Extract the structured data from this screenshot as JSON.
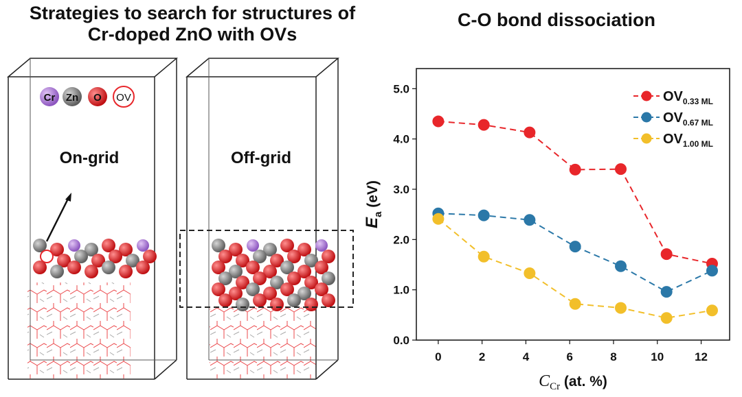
{
  "left_panel": {
    "title_line1": "Strategies to search for structures of",
    "title_line2": "Cr-doped ZnO with OVs",
    "legend": [
      {
        "symbol": "Cr",
        "color": "#a77bd0"
      },
      {
        "symbol": "Zn",
        "color": "#858585"
      },
      {
        "symbol": "O",
        "color": "#e8262a"
      },
      {
        "symbol": "OV",
        "color": "#ffffff"
      }
    ],
    "on_grid_label": "On-grid",
    "off_grid_label": "Off-grid"
  },
  "chart_data": {
    "type": "line",
    "title": "C-O bond dissociation",
    "xlabel": "C",
    "xlabel_sub": "Cr",
    "xlabel_unit": "(at. %)",
    "ylabel": "E",
    "ylabel_sub": "a",
    "ylabel_unit": "(eV)",
    "xlim": [
      -1,
      13.3
    ],
    "ylim": [
      0,
      5.4
    ],
    "x_ticks": [
      0,
      2,
      4,
      6,
      8,
      10,
      12
    ],
    "y_ticks": [
      0.0,
      1.0,
      2.0,
      3.0,
      4.0,
      5.0
    ],
    "y_tick_labels": [
      "0.0",
      "1.0",
      "2.0",
      "3.0",
      "4.0",
      "5.0"
    ],
    "grid": false,
    "legend_position": "top-right",
    "x": [
      0,
      2.08,
      4.17,
      6.25,
      8.33,
      10.42,
      12.5
    ],
    "series": [
      {
        "name": "OV",
        "name_sub": "0.33 ML",
        "color": "#e8262a",
        "values": [
          4.35,
          4.28,
          4.13,
          3.39,
          3.4,
          1.71,
          1.52
        ]
      },
      {
        "name": "OV",
        "name_sub": "0.67 ML",
        "color": "#2b78a8",
        "values": [
          2.52,
          2.48,
          2.39,
          1.86,
          1.47,
          0.96,
          1.38
        ]
      },
      {
        "name": "OV",
        "name_sub": "1.00 ML",
        "color": "#f2bf2a",
        "values": [
          2.41,
          1.66,
          1.33,
          0.72,
          0.64,
          0.44,
          0.59
        ]
      }
    ]
  }
}
